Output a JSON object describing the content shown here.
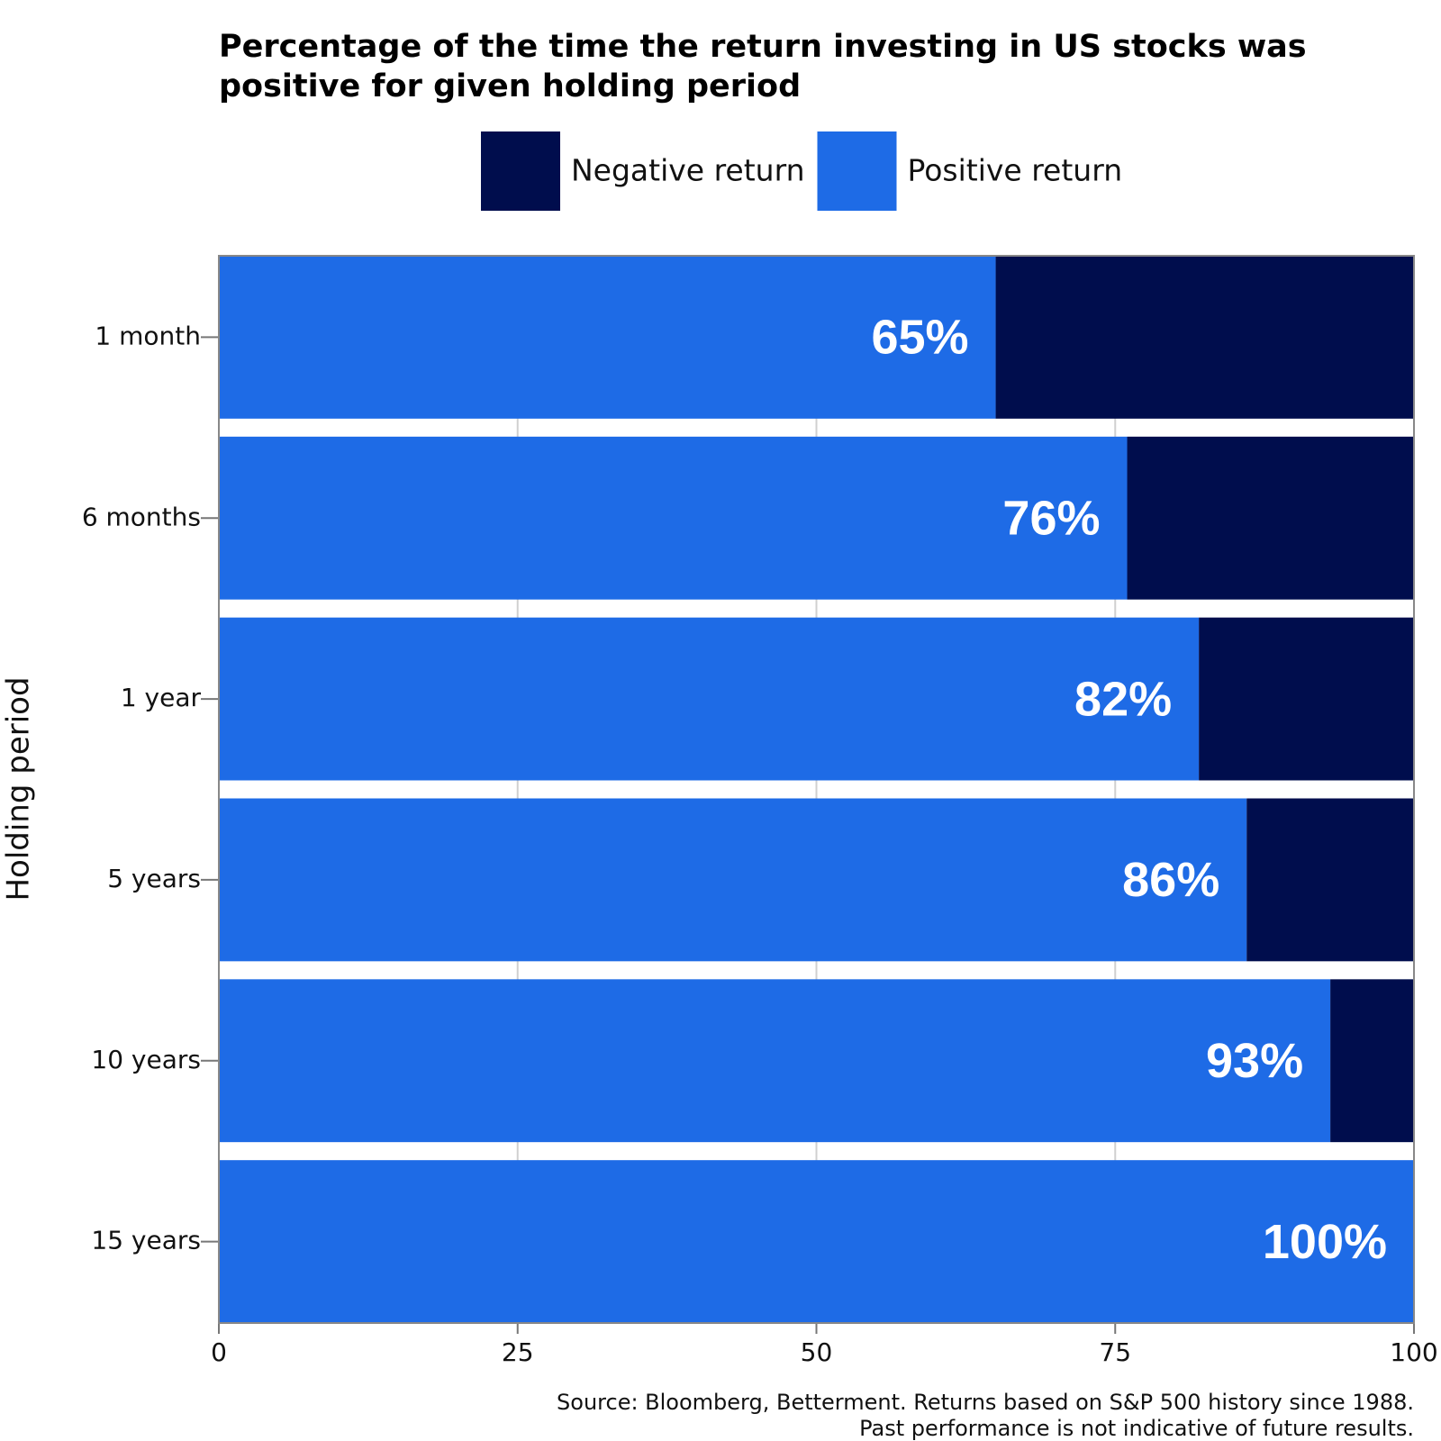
{
  "chart_data": {
    "type": "stacked_barh",
    "title": "Percentage of the time the return investing in US stocks was positive for given holding period",
    "y_label": "Holding period",
    "categories": [
      "1 month",
      "6 months",
      "1 year",
      "5 years",
      "10 years",
      "15 years"
    ],
    "series": [
      {
        "name": "Negative return",
        "color": "#000d4d",
        "values": [
          35,
          24,
          18,
          14,
          7,
          0
        ]
      },
      {
        "name": "Positive return",
        "color": "#1e6be6",
        "values": [
          65,
          76,
          82,
          86,
          93,
          100
        ],
        "value_labels": [
          "65%",
          "76%",
          "82%",
          "86%",
          "93%",
          "100%"
        ]
      }
    ],
    "xlim": [
      0,
      100
    ],
    "xticks": [
      0,
      25,
      50,
      75,
      100
    ],
    "grid": true,
    "notes": [
      "Source: Bloomberg, Betterment. Returns based on S&P 500 history since 1988.",
      "Past performance is not indicative of future results."
    ]
  }
}
